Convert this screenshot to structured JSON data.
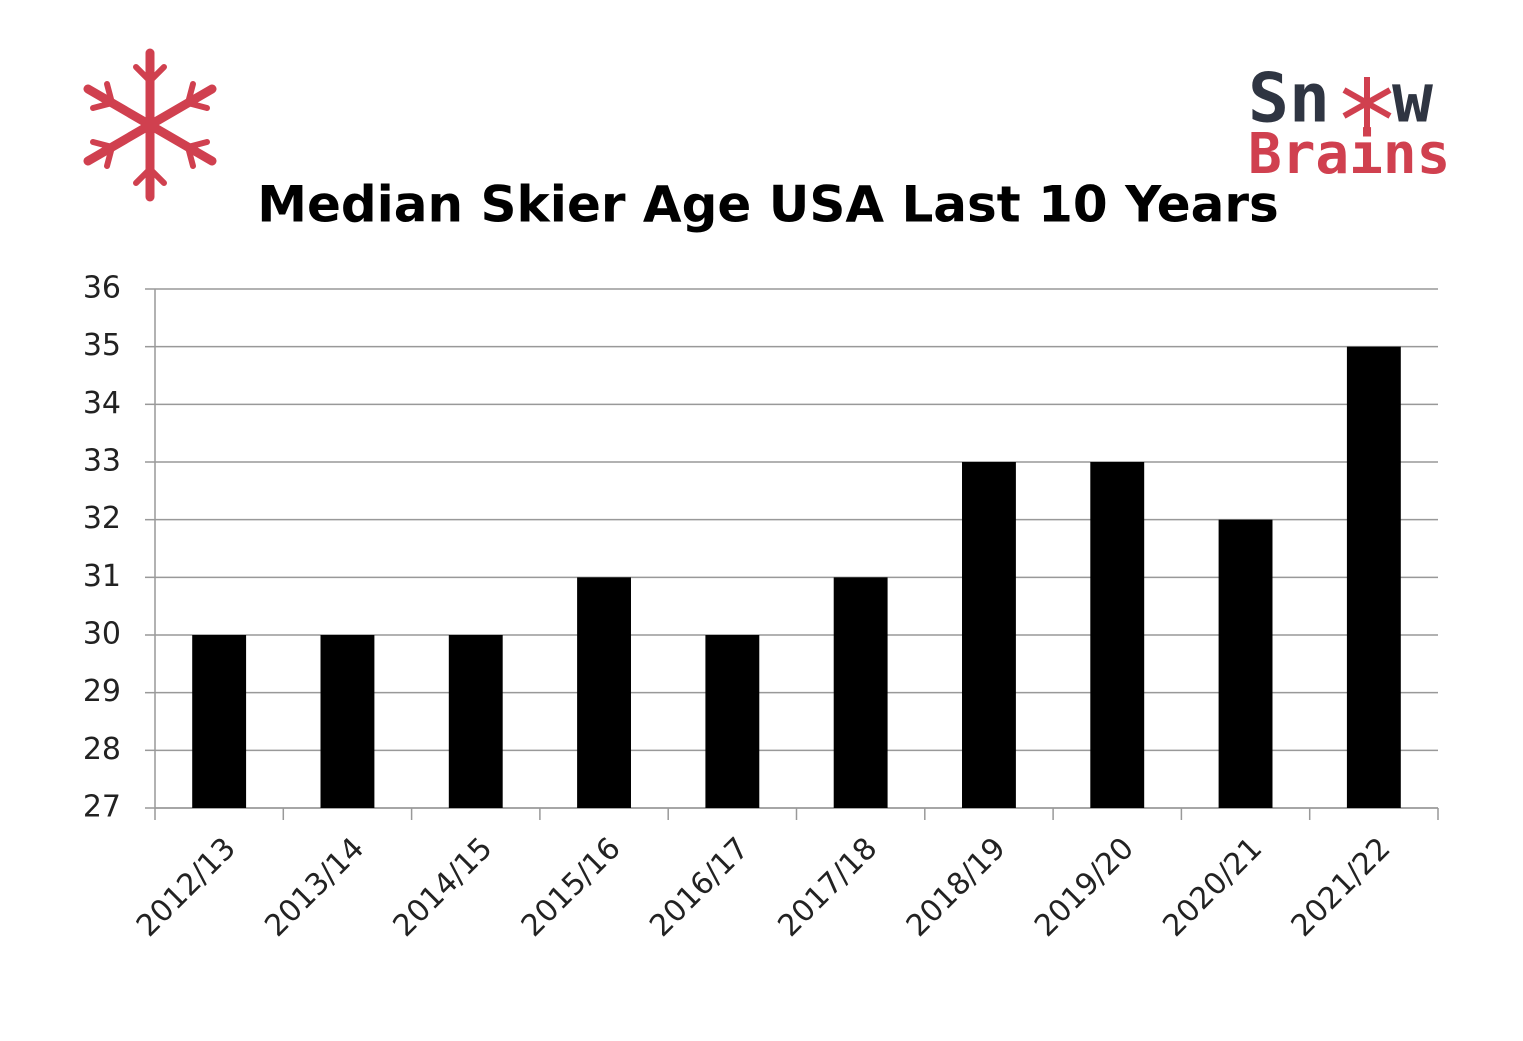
{
  "chart_data": {
    "type": "bar",
    "title": "Median Skier Age USA Last 10 Years",
    "logo": [
      "Sn",
      "w",
      "Brains"
    ],
    "categories": [
      "2012/13",
      "2013/14",
      "2014/15",
      "2015/16",
      "2016/17",
      "2017/18",
      "2018/19",
      "2019/20",
      "2020/21",
      "2021/22"
    ],
    "values": [
      30,
      30,
      30,
      31,
      30,
      31,
      33,
      33,
      32,
      35
    ],
    "color": "#000000",
    "ylim": [
      27,
      36
    ],
    "yticks": [
      27,
      28,
      29,
      30,
      31,
      32,
      33,
      34,
      35,
      36
    ],
    "grid": true
  }
}
